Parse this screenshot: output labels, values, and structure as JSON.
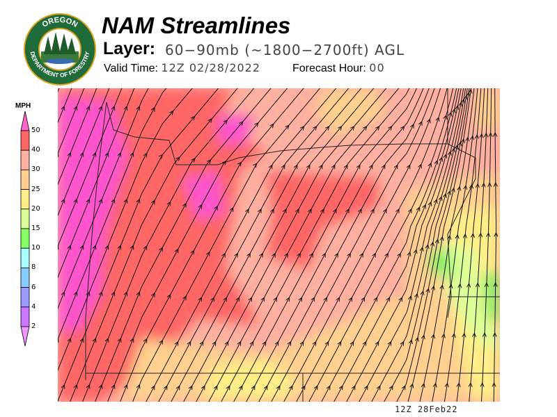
{
  "logo": {
    "text_top": "OREGON",
    "text_bottom": "DEPARTMENT OF FORESTRY",
    "colors": {
      "ring": "#d9a21b",
      "field": "#1f6b3a"
    }
  },
  "header": {
    "title": "NAM Streamlines",
    "layer_label": "Layer:",
    "layer_value": "60−90mb (~1800−2700ft) AGL",
    "valid_label": "Valid Time:",
    "valid_value": "12Z 02/28/2022",
    "forecast_label": "Forecast Hour:",
    "forecast_value": "00"
  },
  "legend": {
    "unit": "MPH",
    "bins": [
      {
        "label": "50",
        "color": "#ff66cc"
      },
      {
        "label": "40",
        "color": "#ff6666"
      },
      {
        "label": "30",
        "color": "#ffb0a0"
      },
      {
        "label": "25",
        "color": "#ffd090"
      },
      {
        "label": "20",
        "color": "#ffee88"
      },
      {
        "label": "15",
        "color": "#ddff99"
      },
      {
        "label": "10",
        "color": "#88ff66"
      },
      {
        "label": "8",
        "color": "#aaffff"
      },
      {
        "label": "6",
        "color": "#88ccff"
      },
      {
        "label": "4",
        "color": "#9999ff"
      },
      {
        "label": "2",
        "color": "#cc77ff"
      }
    ],
    "bottom_arrow_color": "#ee99ff"
  },
  "map": {
    "timestamp": "12Z 28Feb22"
  }
}
